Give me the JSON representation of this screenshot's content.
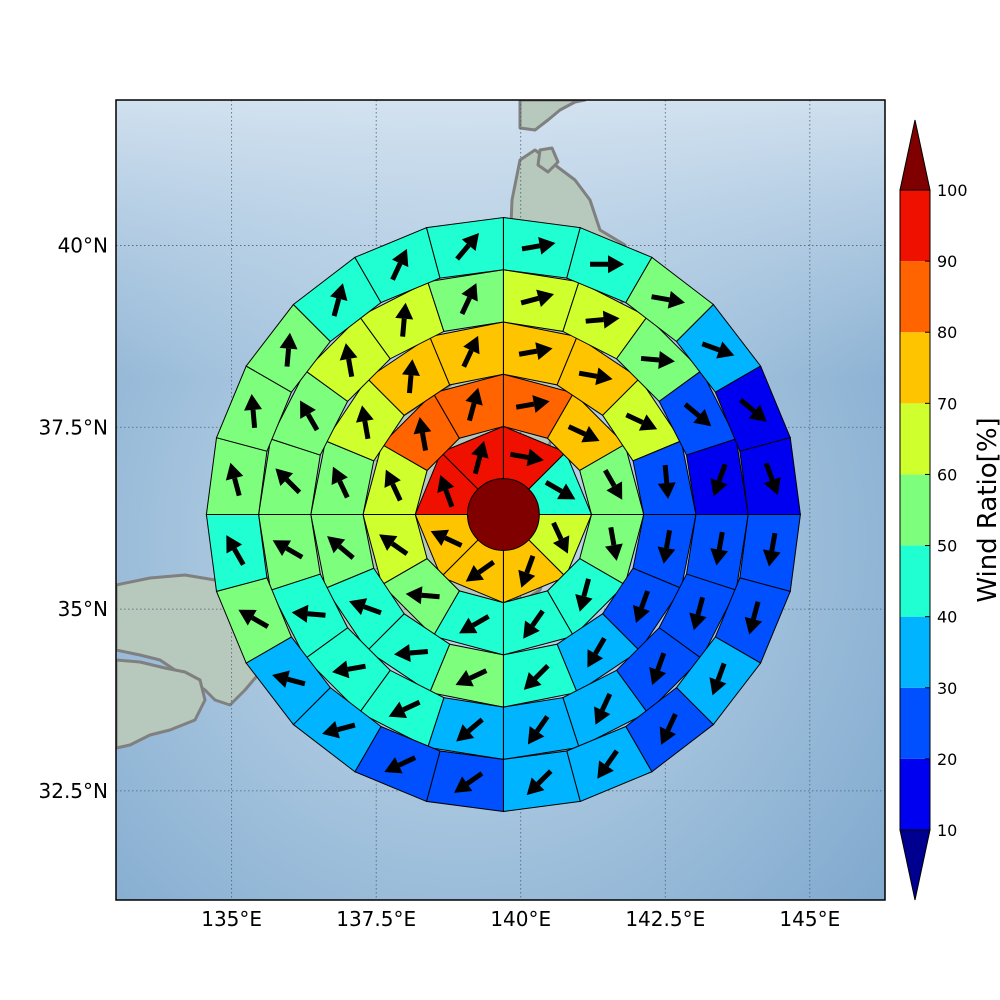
{
  "map": {
    "lon_range": [
      133.0,
      146.3
    ],
    "lat_range": [
      31.0,
      42.0
    ],
    "lon_ticks": [
      {
        "value": 135.0,
        "label": "135°E"
      },
      {
        "value": 137.5,
        "label": "137.5°E"
      },
      {
        "value": 140.0,
        "label": "140°E"
      },
      {
        "value": 142.5,
        "label": "142.5°E"
      },
      {
        "value": 145.0,
        "label": "145°E"
      }
    ],
    "lat_ticks": [
      {
        "value": 40.0,
        "label": "40°N"
      },
      {
        "value": 37.5,
        "label": "37.5°N"
      },
      {
        "value": 35.0,
        "label": "35°N"
      },
      {
        "value": 32.5,
        "label": "32.5°N"
      }
    ],
    "gridlines": true,
    "coastline_color": "#808080",
    "ocean_color": "#9bbbd6",
    "land_color": "#b9c9bd"
  },
  "chart_data": {
    "type": "polar-grid",
    "center": {
      "lon": 139.7,
      "lat": 36.3
    },
    "center_value": 100,
    "center_color": "#800000",
    "rings": [
      {
        "sectors": 8,
        "values": [
          95,
          45,
          65,
          75,
          75,
          70,
          95,
          95
        ],
        "arrows": [
          100,
          120,
          155,
          200,
          235,
          295,
          340,
          15
        ]
      },
      {
        "sectors": 12,
        "values": [
          85,
          75,
          55,
          55,
          45,
          40,
          45,
          55,
          60,
          65,
          85,
          85
        ],
        "arrows": [
          80,
          115,
          150,
          170,
          195,
          215,
          240,
          275,
          305,
          335,
          350,
          15
        ]
      },
      {
        "sectors": 16,
        "values": [
          75,
          75,
          65,
          25,
          25,
          25,
          35,
          45,
          55,
          45,
          45,
          55,
          55,
          65,
          75,
          75
        ],
        "arrows": [
          80,
          100,
          115,
          175,
          190,
          200,
          210,
          225,
          245,
          265,
          290,
          310,
          335,
          350,
          5,
          25
        ]
      },
      {
        "sectors": 20,
        "values": [
          65,
          65,
          55,
          25,
          15,
          25,
          25,
          25,
          35,
          35,
          35,
          45,
          45,
          45,
          55,
          55,
          55,
          65,
          65,
          55
        ],
        "arrows": [
          75,
          85,
          95,
          130,
          200,
          190,
          195,
          200,
          205,
          215,
          230,
          245,
          260,
          275,
          300,
          315,
          330,
          350,
          5,
          25
        ]
      },
      {
        "sectors": 24,
        "values": [
          45,
          45,
          55,
          35,
          15,
          15,
          25,
          25,
          35,
          25,
          35,
          35,
          25,
          25,
          35,
          35,
          55,
          45,
          55,
          55,
          55,
          45,
          45,
          45
        ],
        "arrows": [
          80,
          90,
          100,
          110,
          130,
          160,
          190,
          195,
          200,
          205,
          215,
          225,
          235,
          245,
          255,
          285,
          300,
          330,
          345,
          355,
          5,
          15,
          25,
          40
        ]
      }
    ],
    "ring_radius_deg": [
      0.55,
      1.35,
      2.15,
      2.95,
      3.75,
      4.55
    ]
  },
  "colorbar": {
    "title": "Wind Ratio[%]",
    "ticks": [
      "10",
      "20",
      "30",
      "40",
      "50",
      "60",
      "70",
      "80",
      "90",
      "100"
    ],
    "bins": [
      {
        "from": 10,
        "to": 20,
        "color": "#0000f0"
      },
      {
        "from": 20,
        "to": 30,
        "color": "#0050ff"
      },
      {
        "from": 30,
        "to": 40,
        "color": "#00b4ff"
      },
      {
        "from": 40,
        "to": 50,
        "color": "#20ffd2"
      },
      {
        "from": 50,
        "to": 60,
        "color": "#7dff7d"
      },
      {
        "from": 60,
        "to": 70,
        "color": "#cfff2c"
      },
      {
        "from": 70,
        "to": 80,
        "color": "#ffc400"
      },
      {
        "from": 80,
        "to": 90,
        "color": "#ff6400"
      },
      {
        "from": 90,
        "to": 100,
        "color": "#f01000"
      }
    ],
    "under_color": "#000090",
    "over_color": "#800000"
  }
}
